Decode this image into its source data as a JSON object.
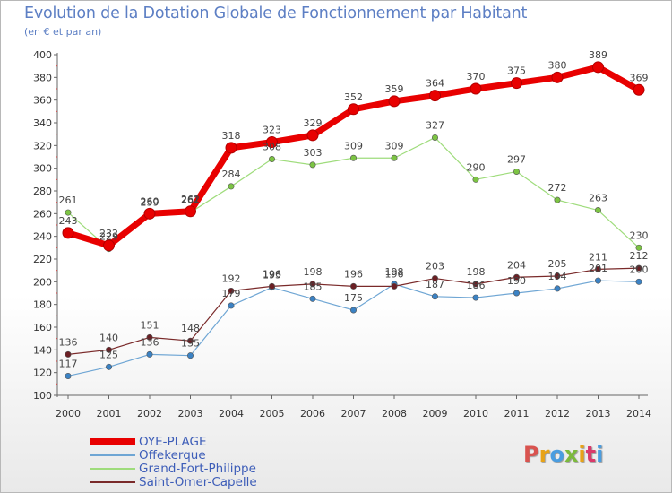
{
  "header": {
    "title": "Evolution de la Dotation Globale de Fonctionnement par Habitant",
    "subtitle": "(en € et par an)"
  },
  "logo": {
    "text": "Proxiti",
    "colors": [
      "#d9534f",
      "#e8a317",
      "#4a9de0",
      "#7cba3c",
      "#e8a317",
      "#d93a6b",
      "#4a9de0"
    ]
  },
  "chart_data": {
    "type": "line",
    "title": "Evolution de la Dotation Globale de Fonctionnement par Habitant",
    "ylabel": "(en € et par an)",
    "xlabel": "",
    "x": [
      "2000",
      "2001",
      "2002",
      "2003",
      "2004",
      "2005",
      "2006",
      "2007",
      "2008",
      "2009",
      "2010",
      "2011",
      "2012",
      "2013",
      "2014"
    ],
    "ylim": [
      100,
      400
    ],
    "yticks": [
      100,
      120,
      140,
      160,
      180,
      200,
      220,
      240,
      260,
      280,
      300,
      320,
      340,
      360,
      380,
      400
    ],
    "grid": false,
    "legend_position": "bottom-left",
    "series": [
      {
        "name": "OYE-PLAGE",
        "color": "#e80000",
        "dot": "#e80000",
        "width": 7,
        "values": [
          243,
          232,
          260,
          262,
          318,
          323,
          329,
          352,
          359,
          364,
          370,
          375,
          380,
          389,
          369
        ]
      },
      {
        "name": "Offekerque",
        "color": "#6fa6d4",
        "dot": "#3b82c4",
        "width": 1.2,
        "values": [
          117,
          125,
          136,
          135,
          179,
          195,
          185,
          175,
          198,
          187,
          186,
          190,
          194,
          201,
          200
        ]
      },
      {
        "name": "Grand-Fort-Philippe",
        "color": "#9fdc7c",
        "dot": "#7cc443",
        "width": 1.2,
        "values": [
          261,
          229,
          259,
          261,
          284,
          308,
          303,
          309,
          309,
          327,
          290,
          297,
          272,
          263,
          230
        ]
      },
      {
        "name": "Saint-Omer-Capelle",
        "color": "#7a2a2a",
        "dot": "#6b1f24",
        "width": 1.2,
        "values": [
          136,
          140,
          151,
          148,
          192,
          196,
          198,
          196,
          196,
          203,
          198,
          204,
          205,
          211,
          212
        ]
      }
    ]
  }
}
